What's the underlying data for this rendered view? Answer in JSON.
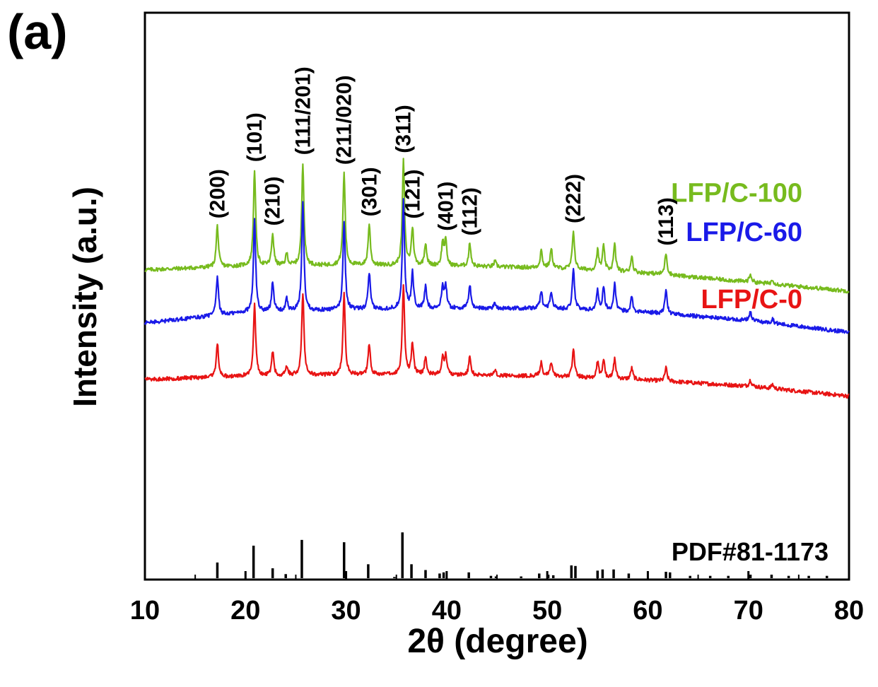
{
  "panel_label": "(a)",
  "chart_data": {
    "type": "line",
    "title": "",
    "xlabel": "2θ (degree)",
    "ylabel": "Intensity (a.u.)",
    "xlim": [
      10,
      80
    ],
    "xticks": [
      10,
      20,
      30,
      40,
      50,
      60,
      70,
      80
    ],
    "grid": false,
    "series": [
      {
        "name": "LFP/C-100",
        "color": "#77bb1e",
        "baseline": [
          [
            10,
            0.8
          ],
          [
            20,
            0.86
          ],
          [
            30,
            0.87
          ],
          [
            40,
            0.86
          ],
          [
            50,
            0.83
          ],
          [
            60,
            0.75
          ],
          [
            70,
            0.62
          ],
          [
            80,
            0.48
          ]
        ],
        "peaks": [
          [
            17.2,
            0.62
          ],
          [
            20.9,
            1.45
          ],
          [
            22.7,
            0.48
          ],
          [
            24.1,
            0.18
          ],
          [
            25.7,
            1.55
          ],
          [
            29.8,
            1.4
          ],
          [
            32.3,
            0.62
          ],
          [
            35.7,
            1.57
          ],
          [
            36.6,
            0.56
          ],
          [
            37.9,
            0.34
          ],
          [
            39.6,
            0.34
          ],
          [
            39.9,
            0.36
          ],
          [
            42.3,
            0.35
          ],
          [
            44.8,
            0.08
          ],
          [
            49.4,
            0.26
          ],
          [
            50.4,
            0.28
          ],
          [
            52.6,
            0.58
          ],
          [
            55.0,
            0.3
          ],
          [
            55.6,
            0.36
          ],
          [
            56.7,
            0.4
          ],
          [
            58.4,
            0.24
          ],
          [
            61.8,
            0.33
          ],
          [
            70.2,
            0.12
          ],
          [
            72.4,
            0.07
          ]
        ]
      },
      {
        "name": "LFP/C-60",
        "color": "#1a1ae8",
        "baseline": [
          [
            10,
            0.0
          ],
          [
            20,
            0.16
          ],
          [
            30,
            0.2
          ],
          [
            40,
            0.22
          ],
          [
            50,
            0.22
          ],
          [
            60,
            0.16
          ],
          [
            70,
            0.04
          ],
          [
            80,
            -0.14
          ]
        ],
        "peaks": [
          [
            17.2,
            0.58
          ],
          [
            20.9,
            1.4
          ],
          [
            22.7,
            0.46
          ],
          [
            24.1,
            0.18
          ],
          [
            25.7,
            1.63
          ],
          [
            29.8,
            1.35
          ],
          [
            32.3,
            0.55
          ],
          [
            35.7,
            1.62
          ],
          [
            36.6,
            0.54
          ],
          [
            37.9,
            0.33
          ],
          [
            39.6,
            0.32
          ],
          [
            39.9,
            0.34
          ],
          [
            42.3,
            0.36
          ],
          [
            44.8,
            0.08
          ],
          [
            49.4,
            0.26
          ],
          [
            50.4,
            0.26
          ],
          [
            52.6,
            0.62
          ],
          [
            55.0,
            0.3
          ],
          [
            55.6,
            0.34
          ],
          [
            56.7,
            0.4
          ],
          [
            58.4,
            0.22
          ],
          [
            61.8,
            0.36
          ],
          [
            70.2,
            0.13
          ],
          [
            72.4,
            0.07
          ]
        ]
      },
      {
        "name": "LFP/C-0",
        "color": "#e81414",
        "baseline": [
          [
            10,
            -0.85
          ],
          [
            20,
            -0.8
          ],
          [
            30,
            -0.78
          ],
          [
            40,
            -0.78
          ],
          [
            50,
            -0.8
          ],
          [
            60,
            -0.86
          ],
          [
            70,
            -0.95
          ],
          [
            80,
            -1.1
          ]
        ],
        "peaks": [
          [
            17.2,
            0.52
          ],
          [
            20.9,
            1.07
          ],
          [
            22.7,
            0.36
          ],
          [
            24.1,
            0.15
          ],
          [
            25.7,
            1.25
          ],
          [
            29.8,
            1.21
          ],
          [
            32.3,
            0.46
          ],
          [
            35.7,
            1.35
          ],
          [
            36.6,
            0.47
          ],
          [
            37.9,
            0.27
          ],
          [
            39.6,
            0.25
          ],
          [
            39.9,
            0.28
          ],
          [
            42.3,
            0.27
          ],
          [
            44.8,
            0.08
          ],
          [
            49.4,
            0.21
          ],
          [
            50.4,
            0.21
          ],
          [
            52.6,
            0.43
          ],
          [
            55.0,
            0.25
          ],
          [
            55.6,
            0.27
          ],
          [
            56.7,
            0.3
          ],
          [
            58.4,
            0.17
          ],
          [
            61.8,
            0.2
          ],
          [
            70.2,
            0.1
          ],
          [
            72.4,
            0.06
          ]
        ]
      }
    ],
    "reference": {
      "name": "PDF#81-1173",
      "color": "#000000",
      "lines": [
        [
          17.2,
          27
        ],
        [
          20.8,
          56
        ],
        [
          22.7,
          17
        ],
        [
          24.0,
          7
        ],
        [
          25.6,
          66
        ],
        [
          29.8,
          62
        ],
        [
          32.2,
          24
        ],
        [
          34.8,
          2
        ],
        [
          35.6,
          79
        ],
        [
          36.5,
          24
        ],
        [
          37.9,
          14
        ],
        [
          39.3,
          8
        ],
        [
          39.7,
          10
        ],
        [
          42.2,
          10
        ],
        [
          44.4,
          4
        ],
        [
          44.9,
          3
        ],
        [
          47.4,
          3
        ],
        [
          49.2,
          8
        ],
        [
          50.1,
          6
        ],
        [
          50.6,
          5
        ],
        [
          52.4,
          22
        ],
        [
          52.8,
          21
        ],
        [
          55.0,
          13
        ],
        [
          55.5,
          15
        ],
        [
          56.6,
          15
        ],
        [
          58.1,
          8
        ],
        [
          61.8,
          11
        ],
        [
          62.2,
          10
        ],
        [
          64.2,
          4
        ],
        [
          66.2,
          4
        ],
        [
          68.0,
          4
        ],
        [
          70.2,
          6
        ],
        [
          72.3,
          6
        ],
        [
          74.0,
          4
        ],
        [
          76.0,
          4
        ],
        [
          77.8,
          4
        ]
      ]
    },
    "peak_labels": [
      {
        "text": "(200)",
        "x": 17.2
      },
      {
        "text": "(101)",
        "x": 20.9
      },
      {
        "text": "(210)",
        "x": 22.7
      },
      {
        "text": "(111/201)",
        "x": 25.7
      },
      {
        "text": "(211/020)",
        "x": 29.8
      },
      {
        "text": "(301)",
        "x": 32.3
      },
      {
        "text": "(311)",
        "x": 35.7
      },
      {
        "text": "(121)",
        "x": 36.6
      },
      {
        "text": "(401)",
        "x": 39.9
      },
      {
        "text": "(112)",
        "x": 42.3
      },
      {
        "text": "(222)",
        "x": 52.6
      },
      {
        "text": "(113)",
        "x": 61.8
      }
    ]
  }
}
